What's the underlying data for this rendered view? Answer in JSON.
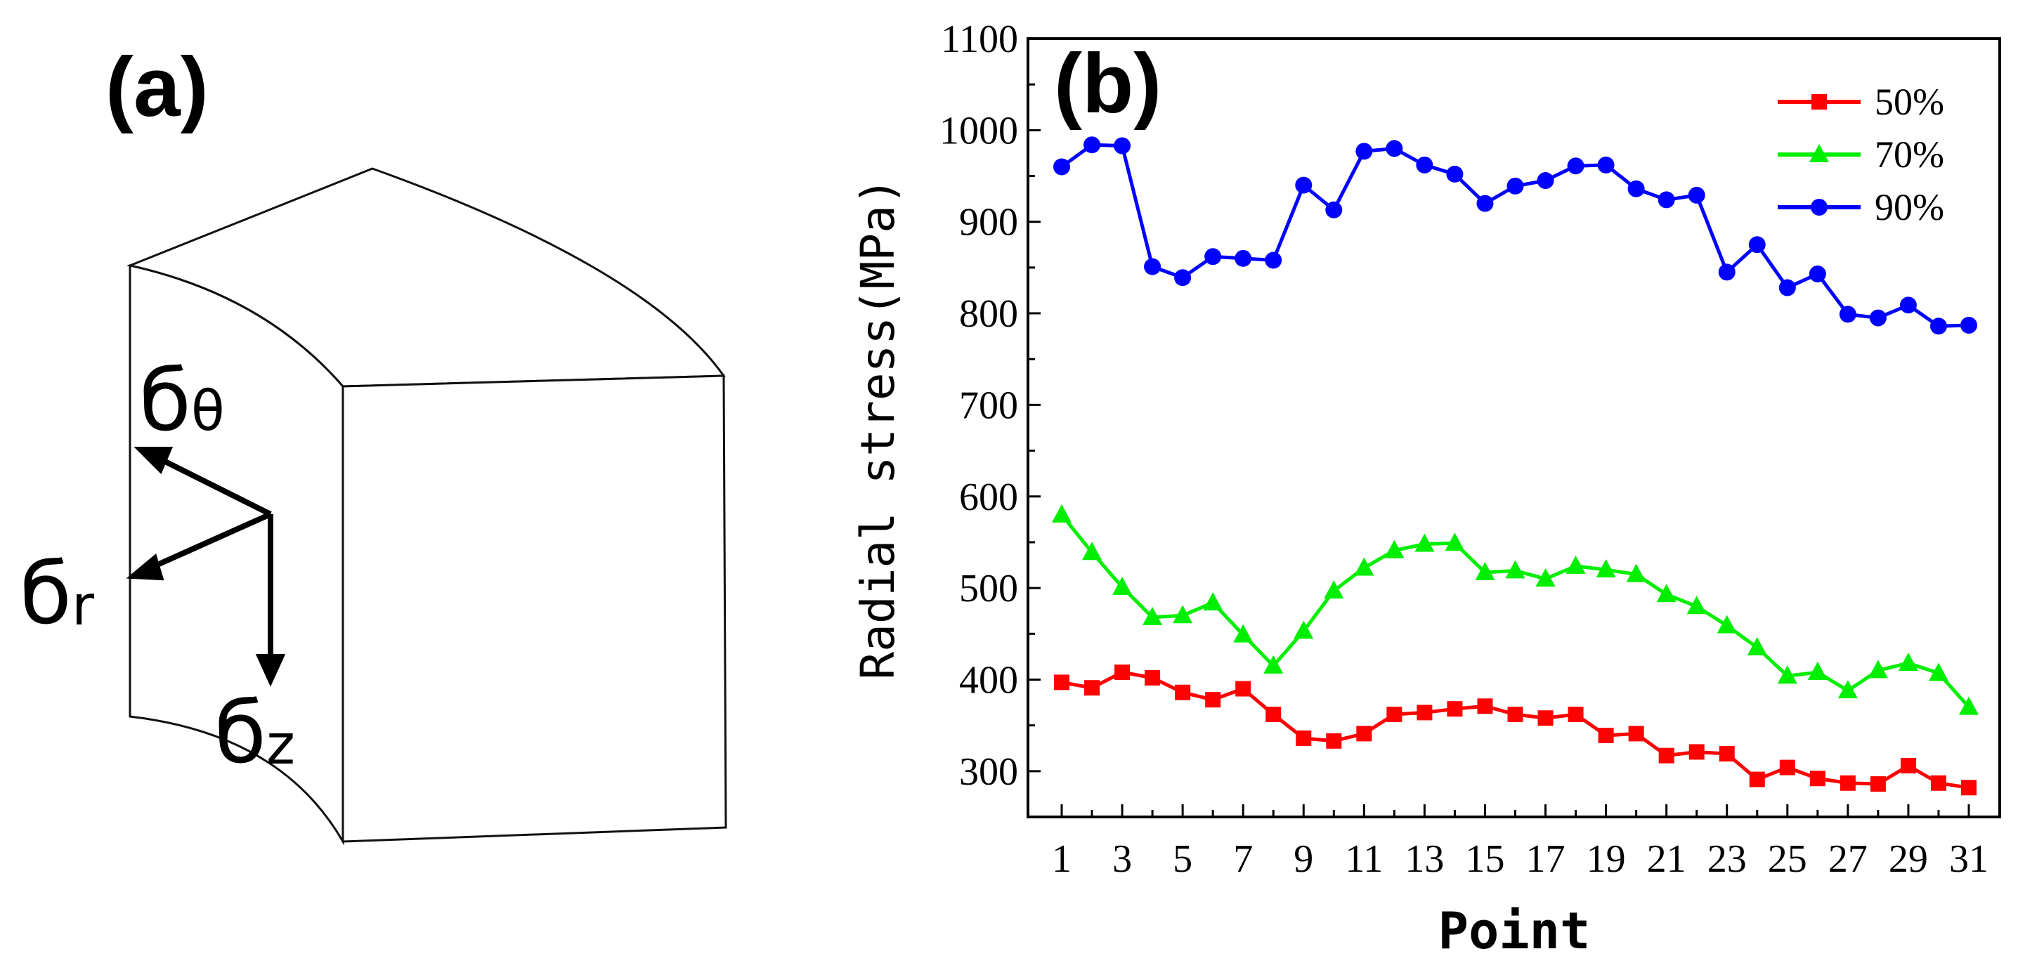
{
  "panel_a": {
    "label": "(a)",
    "stress_components": [
      {
        "name": "theta",
        "base": "б",
        "sub": "θ"
      },
      {
        "name": "r",
        "base": "б",
        "sub": "r"
      },
      {
        "name": "z",
        "base": "б",
        "sub": "z"
      }
    ]
  },
  "panel_b": {
    "label": "(b)"
  },
  "chart_data": {
    "type": "line",
    "title": "",
    "xlabel": "Point",
    "ylabel": "Radial stress(MPa)",
    "ylim": [
      250,
      1100
    ],
    "xlim": [
      1,
      31
    ],
    "yticks": [
      300,
      400,
      500,
      600,
      700,
      800,
      900,
      1000,
      1100
    ],
    "xticks": [
      1,
      3,
      5,
      7,
      9,
      11,
      13,
      15,
      17,
      19,
      21,
      23,
      25,
      27,
      29,
      31
    ],
    "legend_position": "top-right",
    "x": [
      1,
      2,
      3,
      4,
      5,
      6,
      7,
      8,
      9,
      10,
      11,
      12,
      13,
      14,
      15,
      16,
      17,
      18,
      19,
      20,
      21,
      22,
      23,
      24,
      25,
      26,
      27,
      28,
      29,
      30,
      31
    ],
    "series": [
      {
        "name": "50%",
        "color": "#ff0000",
        "marker": "square",
        "values": [
          397,
          391,
          408,
          402,
          386,
          378,
          390,
          362,
          336,
          333,
          341,
          362,
          364,
          368,
          371,
          362,
          358,
          362,
          339,
          341,
          317,
          321,
          319,
          291,
          304,
          292,
          287,
          286,
          306,
          287,
          282
        ]
      },
      {
        "name": "70%",
        "color": "#00ee00",
        "marker": "triangle",
        "values": [
          580,
          539,
          501,
          468,
          470,
          484,
          449,
          415,
          453,
          497,
          522,
          541,
          548,
          549,
          517,
          519,
          510,
          524,
          520,
          515,
          493,
          480,
          459,
          435,
          404,
          408,
          388,
          410,
          418,
          407,
          370
        ]
      },
      {
        "name": "90%",
        "color": "#0000ff",
        "marker": "circle",
        "values": [
          960,
          984,
          983,
          851,
          839,
          862,
          860,
          858,
          940,
          913,
          977,
          980,
          962,
          952,
          920,
          939,
          945,
          961,
          962,
          936,
          924,
          929,
          845,
          875,
          828,
          843,
          799,
          795,
          809,
          786,
          787
        ]
      }
    ]
  }
}
